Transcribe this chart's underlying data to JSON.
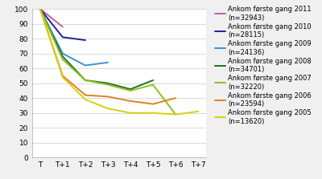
{
  "x_labels": [
    "T",
    "T+1",
    "T+2",
    "T+3",
    "T+4",
    "T+5",
    "T+6",
    "T+7"
  ],
  "series": [
    {
      "label": "Ankom første gang 2011\n(n=32943)",
      "color": "#c060a0",
      "data": [
        100,
        88,
        null,
        null,
        null,
        null,
        null,
        null
      ]
    },
    {
      "label": "Ankom første gang 2010\n(n=28115)",
      "color": "#2020a0",
      "data": [
        100,
        81,
        79,
        null,
        null,
        null,
        null,
        null
      ]
    },
    {
      "label": "Ankom første gang 2009\n(n=24136)",
      "color": "#4090d0",
      "data": [
        100,
        70,
        62,
        64,
        null,
        null,
        null,
        null
      ]
    },
    {
      "label": "Ankom første gang 2008\n(n=34701)",
      "color": "#207020",
      "data": [
        100,
        68,
        52,
        50,
        46,
        52,
        null,
        null
      ]
    },
    {
      "label": "Ankom første gang 2007\n(n=32220)",
      "color": "#90c020",
      "data": [
        100,
        66,
        52,
        49,
        45,
        49,
        29,
        null
      ]
    },
    {
      "label": "Ankom første gang 2006\n(n=23594)",
      "color": "#e08020",
      "data": [
        100,
        55,
        42,
        41,
        38,
        36,
        40,
        null
      ]
    },
    {
      "label": "Ankom første gang 2005\n(n=13620)",
      "color": "#d8d010",
      "data": [
        100,
        54,
        39,
        33,
        30,
        30,
        29,
        31
      ]
    }
  ],
  "ylim": [
    0,
    100
  ],
  "background_color": "#f0f0f0",
  "plot_background": "#ffffff",
  "grid_color": "#cccccc",
  "tick_font_size": 6.5,
  "legend_font_size": 6.0
}
